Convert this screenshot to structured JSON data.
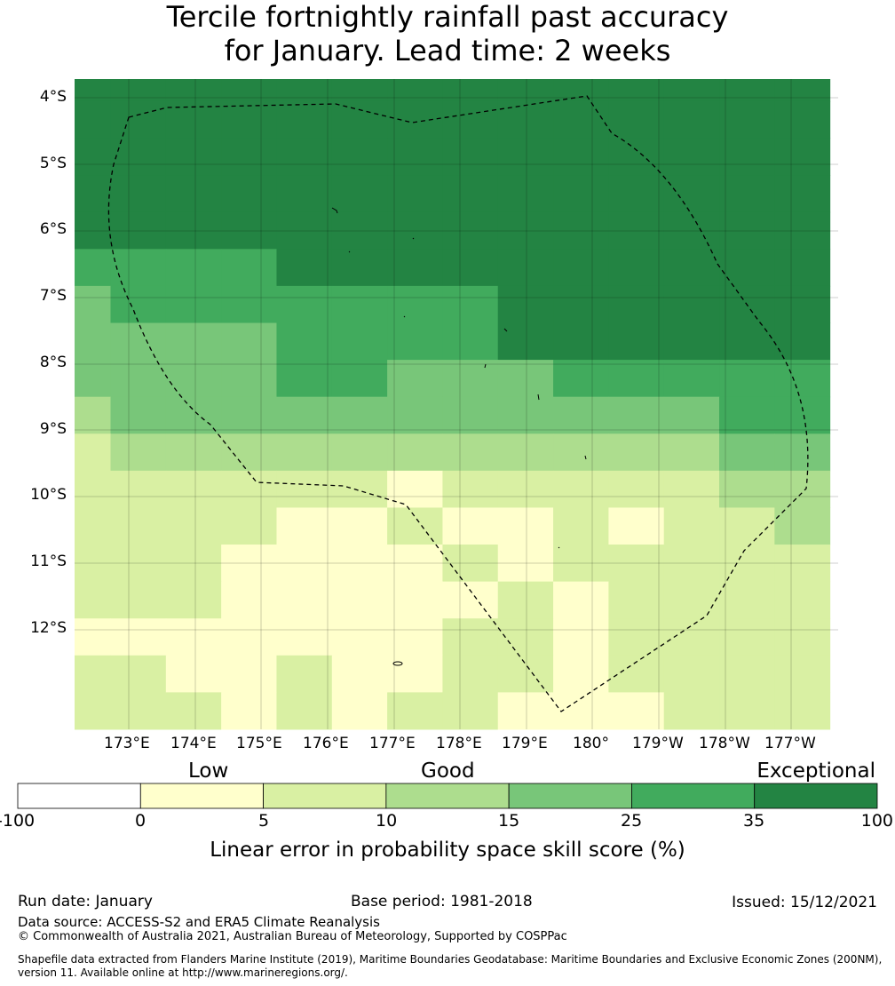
{
  "title": {
    "line1": "Tercile fortnightly rainfall past accuracy",
    "line2": "for January. Lead time: 2 weeks"
  },
  "map": {
    "lat_labels": [
      "4°S",
      "5°S",
      "6°S",
      "7°S",
      "8°S",
      "9°S",
      "10°S",
      "11°S",
      "12°S"
    ],
    "lon_labels": [
      "173°E",
      "174°E",
      "175°E",
      "176°E",
      "177°E",
      "178°E",
      "179°E",
      "180°",
      "179°W",
      "178°W",
      "177°W"
    ],
    "grid_cols": 14,
    "grid_rows": 18,
    "grid_classes": [
      [
        6,
        6,
        6,
        6,
        6,
        6,
        6,
        6,
        6,
        6,
        6,
        6,
        6,
        6
      ],
      [
        6,
        6,
        6,
        6,
        6,
        6,
        6,
        6,
        6,
        6,
        6,
        6,
        6,
        6
      ],
      [
        6,
        6,
        6,
        6,
        6,
        6,
        6,
        6,
        6,
        6,
        6,
        6,
        6,
        6
      ],
      [
        6,
        6,
        6,
        6,
        6,
        6,
        6,
        6,
        6,
        6,
        6,
        6,
        6,
        6
      ],
      [
        6,
        6,
        6,
        6,
        6,
        6,
        6,
        6,
        6,
        6,
        6,
        6,
        6,
        6
      ],
      [
        5,
        5,
        5,
        5,
        6,
        6,
        6,
        6,
        6,
        6,
        6,
        6,
        6,
        6
      ],
      [
        4,
        5,
        5,
        5,
        5,
        5,
        5,
        5,
        6,
        6,
        6,
        6,
        6,
        6
      ],
      [
        4,
        4,
        4,
        4,
        5,
        5,
        5,
        5,
        6,
        6,
        6,
        6,
        6,
        6
      ],
      [
        4,
        4,
        4,
        4,
        5,
        5,
        4,
        4,
        4,
        5,
        5,
        5,
        5,
        5
      ],
      [
        3,
        4,
        4,
        4,
        4,
        4,
        4,
        4,
        4,
        4,
        4,
        4,
        5,
        5
      ],
      [
        2,
        3,
        3,
        3,
        3,
        3,
        3,
        3,
        3,
        3,
        3,
        3,
        4,
        4
      ],
      [
        2,
        2,
        2,
        2,
        2,
        2,
        1,
        2,
        2,
        2,
        2,
        2,
        3,
        3
      ],
      [
        2,
        2,
        2,
        2,
        1,
        1,
        2,
        1,
        1,
        2,
        1,
        2,
        2,
        3
      ],
      [
        2,
        2,
        2,
        1,
        1,
        1,
        1,
        2,
        1,
        2,
        2,
        2,
        2,
        2
      ],
      [
        2,
        2,
        2,
        1,
        1,
        1,
        1,
        1,
        2,
        1,
        2,
        2,
        2,
        2
      ],
      [
        1,
        1,
        1,
        1,
        1,
        1,
        1,
        2,
        2,
        1,
        2,
        2,
        2,
        2
      ],
      [
        2,
        2,
        1,
        1,
        2,
        1,
        1,
        2,
        2,
        1,
        2,
        2,
        2,
        2
      ],
      [
        2,
        2,
        2,
        1,
        2,
        1,
        2,
        2,
        1,
        1,
        1,
        2,
        2,
        2
      ]
    ],
    "eez_boundary_style": "dashed"
  },
  "colorbar": {
    "categories": [
      "Low",
      "Good",
      "Exceptional"
    ],
    "bins": [
      {
        "from": -100,
        "to": 0,
        "color": "#ffffff"
      },
      {
        "from": 0,
        "to": 5,
        "color": "#ffffcc"
      },
      {
        "from": 5,
        "to": 10,
        "color": "#d9f0a3"
      },
      {
        "from": 10,
        "to": 15,
        "color": "#addd8e"
      },
      {
        "from": 15,
        "to": 25,
        "color": "#78c679"
      },
      {
        "from": 25,
        "to": 35,
        "color": "#41ab5d"
      },
      {
        "from": 35,
        "to": 100,
        "color": "#238443"
      }
    ],
    "ticks": [
      "-100",
      "0",
      "5",
      "10",
      "15",
      "25",
      "35",
      "100"
    ],
    "title": "Linear error in probability space skill score (%)"
  },
  "footer": {
    "run_date": "Run date: January",
    "base_period": "Base period: 1981-2018",
    "issued": "Issued: 15/12/2021",
    "data_source": "Data source: ACCESS-S2 and ERA5 Climate Reanalysis",
    "copyright": "© Commonwealth of Australia 2021, Australian Bureau of Meteorology, Supported by COSPPac",
    "shapefile_line1": "Shapefile data extracted from Flanders Marine Institute (2019), Maritime Boundaries Geodatabase: Maritime Boundaries and Exclusive Economic Zones (200NM),",
    "shapefile_line2": "version 11. Available online at http://www.marineregions.org/."
  }
}
